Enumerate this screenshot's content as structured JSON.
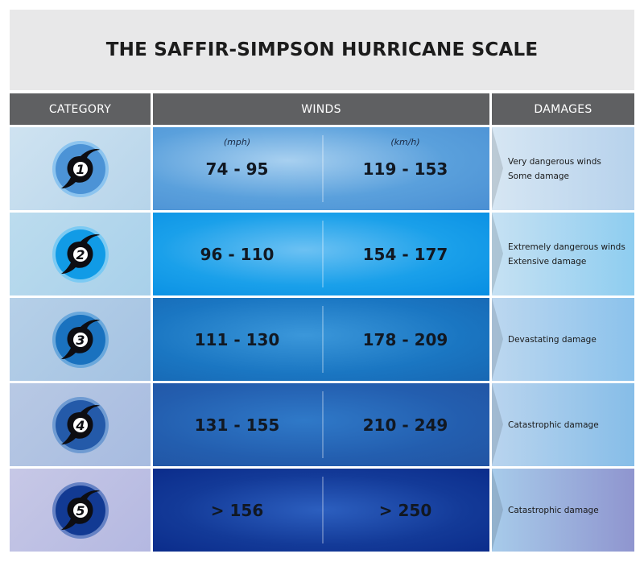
{
  "title": "THE SAFFIR-SIMPSON HURRICANE SCALE",
  "headers": {
    "category": "CATEGORY",
    "winds": "WINDS",
    "damages": "DAMAGES"
  },
  "units": {
    "mph": "(mph)",
    "kmh": "(km/h)"
  },
  "rows": [
    {
      "category": "1",
      "mph": "74 - 95",
      "kmh": "119 - 153",
      "damage_line1": "Very dangerous winds",
      "damage_line2": "Some damage",
      "badge_color": "#4c93d6",
      "badge_rim": "#8cc4ef"
    },
    {
      "category": "2",
      "mph": "96 - 110",
      "kmh": "154 - 177",
      "damage_line1": "Extremely dangerous winds",
      "damage_line2": "Extensive damage",
      "badge_color": "#119be6",
      "badge_rim": "#7ccaf3"
    },
    {
      "category": "3",
      "mph": "111 - 130",
      "kmh": "178 - 209",
      "damage_line1": "Devastating damage",
      "damage_line2": "",
      "badge_color": "#1a72bf",
      "badge_rim": "#6aa8dc"
    },
    {
      "category": "4",
      "mph": "131 - 155",
      "kmh": "210 - 249",
      "damage_line1": "Catastrophic damage",
      "damage_line2": "",
      "badge_color": "#245aa9",
      "badge_rim": "#6f9bd2"
    },
    {
      "category": "5",
      "mph": "> 156",
      "kmh": "> 250",
      "damage_line1": "Catastrophic damage",
      "damage_line2": "",
      "badge_color": "#123a93",
      "badge_rim": "#6682c4"
    }
  ]
}
